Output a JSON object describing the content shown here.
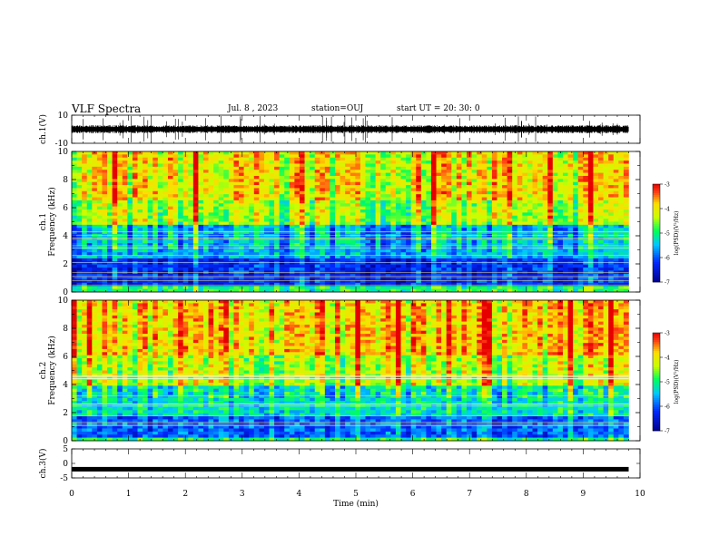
{
  "header": {
    "title": "VLF Spectra",
    "date": "Jul. 8 , 2023",
    "station": "station=OUJ",
    "start_ut": "start UT = 20: 30: 0"
  },
  "chart_data": [
    {
      "type": "line",
      "panel": "ch1-waveform",
      "ylabel": "ch.1(V)",
      "yticks": [
        "10",
        "-10"
      ],
      "ylim": [
        -10,
        10
      ],
      "note_values": "broadband noise trace centered near 0 V with sporadic spikes",
      "baseline_value": 0,
      "color": "#000000"
    },
    {
      "type": "heatmap",
      "panel": "ch1-spectrogram",
      "ylabel_line1": "ch.1",
      "ylabel_line2": "Frequency (kHz)",
      "yticks": [
        "0",
        "2",
        "4",
        "6",
        "8",
        "10"
      ],
      "ylim": [
        0,
        10
      ],
      "xlim": [
        0,
        10
      ],
      "colorbar": {
        "label": "log(PSD)(V²/Hz)",
        "ticks": [
          "-3",
          "-4",
          "-5",
          "-6",
          "-7"
        ],
        "range": [
          -7,
          -3
        ]
      },
      "levels_by_band": [
        {
          "from_khz": 0,
          "to_khz": 0.4,
          "level": -5.0
        },
        {
          "from_khz": 0.4,
          "to_khz": 2.5,
          "level": -6.3
        },
        {
          "from_khz": 2.5,
          "to_khz": 4.7,
          "level": -5.6
        },
        {
          "from_khz": 4.7,
          "to_khz": 6.5,
          "level": -4.5
        },
        {
          "from_khz": 6.5,
          "to_khz": 10,
          "level": -4.1
        }
      ]
    },
    {
      "type": "heatmap",
      "panel": "ch2-spectrogram",
      "ylabel_line1": "ch.2",
      "ylabel_line2": "Frequency (kHz)",
      "yticks": [
        "0",
        "2",
        "4",
        "6",
        "8",
        "10"
      ],
      "ylim": [
        0,
        10
      ],
      "xlim": [
        0,
        10
      ],
      "colorbar": {
        "label": "log(PSD)(V²/Hz)",
        "ticks": [
          "-3",
          "-4",
          "-5",
          "-6",
          "-7"
        ],
        "range": [
          -7,
          -3
        ]
      },
      "levels_by_band": [
        {
          "from_khz": 0,
          "to_khz": 0.3,
          "level": -5.0
        },
        {
          "from_khz": 0.3,
          "to_khz": 1.8,
          "level": -6.0
        },
        {
          "from_khz": 1.8,
          "to_khz": 4.0,
          "level": -5.3
        },
        {
          "from_khz": 4.0,
          "to_khz": 6.0,
          "level": -4.4
        },
        {
          "from_khz": 6.0,
          "to_khz": 10,
          "level": -3.9
        }
      ]
    },
    {
      "type": "line",
      "panel": "ch3-waveform",
      "ylabel": "ch.3(V)",
      "yticks": [
        "5",
        "0",
        "-5"
      ],
      "ylim": [
        -5,
        5
      ],
      "constant_value": -2,
      "color": "#000000"
    }
  ],
  "xaxis": {
    "label": "Time (min)",
    "ticks": [
      "0",
      "1",
      "2",
      "3",
      "4",
      "5",
      "6",
      "7",
      "8",
      "9",
      "10"
    ],
    "xlim": [
      0,
      10
    ],
    "data_end_min": 9.8
  }
}
